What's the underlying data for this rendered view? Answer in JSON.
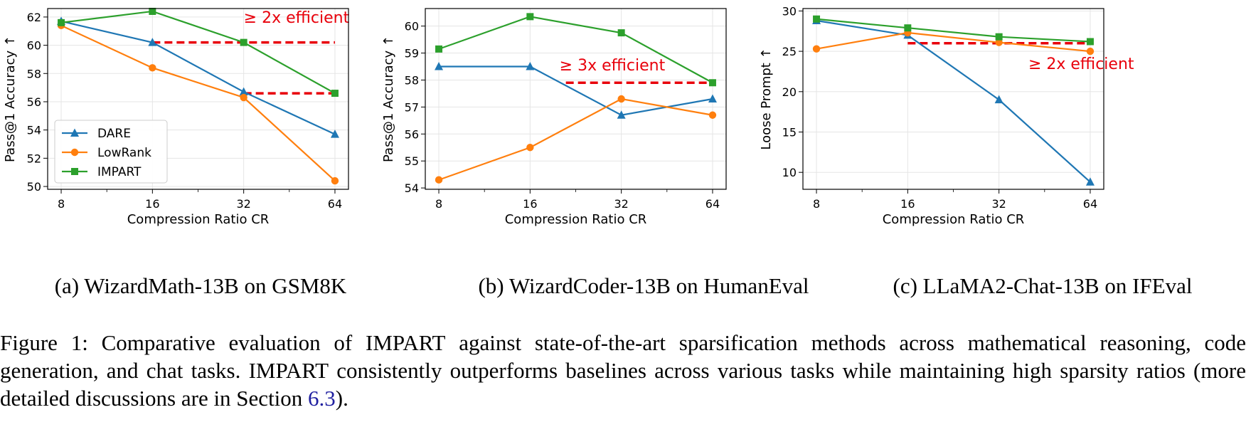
{
  "colors": {
    "DARE": "#1f77b4",
    "LowRank": "#ff7f0e",
    "IMPART": "#2ca02c",
    "annotation": "#e8000b",
    "grid": "#e5e5e5"
  },
  "chart_data": [
    {
      "type": "line",
      "x_scale": "log2",
      "x": [
        8,
        16,
        32,
        64
      ],
      "x_ticks": [
        "8",
        "16",
        "32",
        "64"
      ],
      "xlabel": "Compression Ratio CR",
      "ylabel": "Pass@1 Accuracy ↑",
      "ylim": [
        49.8,
        62.6
      ],
      "yticks": [
        50,
        52,
        54,
        56,
        58,
        60,
        62
      ],
      "grid": true,
      "legend": "lower-left",
      "series": [
        {
          "name": "DARE",
          "marker": "triangle",
          "values": [
            61.7,
            60.2,
            56.7,
            53.7
          ]
        },
        {
          "name": "LowRank",
          "marker": "circle",
          "values": [
            61.4,
            58.4,
            56.3,
            50.4
          ]
        },
        {
          "name": "IMPART",
          "marker": "square",
          "values": [
            61.6,
            62.4,
            60.2,
            56.6
          ]
        }
      ],
      "annotations": [
        {
          "text": "≥ 2x efficient",
          "at_x": 32,
          "at_y": 61.6
        },
        {
          "type": "dashed-line",
          "x": [
            16,
            64
          ],
          "y": 60.2
        },
        {
          "type": "dashed-line",
          "x": [
            32,
            64
          ],
          "y": 56.6
        }
      ],
      "caption": "(a) WizardMath-13B on GSM8K"
    },
    {
      "type": "line",
      "x_scale": "log2",
      "x": [
        8,
        16,
        32,
        64
      ],
      "x_ticks": [
        "8",
        "16",
        "32",
        "64"
      ],
      "xlabel": "Compression Ratio CR",
      "ylabel": "Pass@1 Accuracy ↑",
      "ylim": [
        53.95,
        60.65
      ],
      "yticks": [
        54,
        55,
        56,
        57,
        58,
        59,
        60
      ],
      "grid": true,
      "legend": "none",
      "series": [
        {
          "name": "DARE",
          "marker": "triangle",
          "values": [
            58.5,
            58.5,
            56.7,
            57.3
          ]
        },
        {
          "name": "LowRank",
          "marker": "circle",
          "values": [
            54.3,
            55.5,
            57.3,
            56.7
          ]
        },
        {
          "name": "IMPART",
          "marker": "square",
          "values": [
            59.15,
            60.35,
            59.75,
            57.9
          ]
        }
      ],
      "annotations": [
        {
          "text": "≥ 3x efficient",
          "at_x": 20,
          "at_y": 58.35
        },
        {
          "type": "dashed-line",
          "x": [
            21,
            64
          ],
          "y": 57.9
        }
      ],
      "caption": "(b) WizardCoder-13B on HumanEval"
    },
    {
      "type": "line",
      "x_scale": "log2",
      "x": [
        8,
        16,
        32,
        64
      ],
      "x_ticks": [
        "8",
        "16",
        "32",
        "64"
      ],
      "xlabel": "Compression Ratio CR",
      "ylabel": "Loose Prompt ↑",
      "ylim": [
        7.9,
        30.3
      ],
      "yticks": [
        10,
        15,
        20,
        25,
        30
      ],
      "grid": true,
      "legend": "none",
      "series": [
        {
          "name": "DARE",
          "marker": "triangle",
          "values": [
            28.8,
            27.0,
            19.0,
            8.8
          ]
        },
        {
          "name": "LowRank",
          "marker": "circle",
          "values": [
            25.3,
            27.3,
            26.1,
            25.0
          ]
        },
        {
          "name": "IMPART",
          "marker": "square",
          "values": [
            29.0,
            27.9,
            26.8,
            26.2
          ]
        }
      ],
      "annotations": [
        {
          "text": "≥ 2x efficient",
          "at_x": 40,
          "at_y": 22.8
        },
        {
          "type": "dashed-line",
          "x": [
            16,
            64
          ],
          "y": 26.0
        }
      ],
      "caption": "(c) LLaMA2-Chat-13B on IFEval"
    }
  ],
  "figure_caption": {
    "prefix": "Figure 1: Comparative evaluation of ",
    "method_first": "I",
    "method_rest": "MPART",
    "middle1": " against state-of-the-art sparsification methods across mathematical reasoning, code generation, and chat tasks. ",
    "middle2": " consistently outperforms baselines across various tasks while maintaining high sparsity ratios (more detailed discussions are in Section ",
    "section_ref": "6.3",
    "suffix": ")."
  }
}
